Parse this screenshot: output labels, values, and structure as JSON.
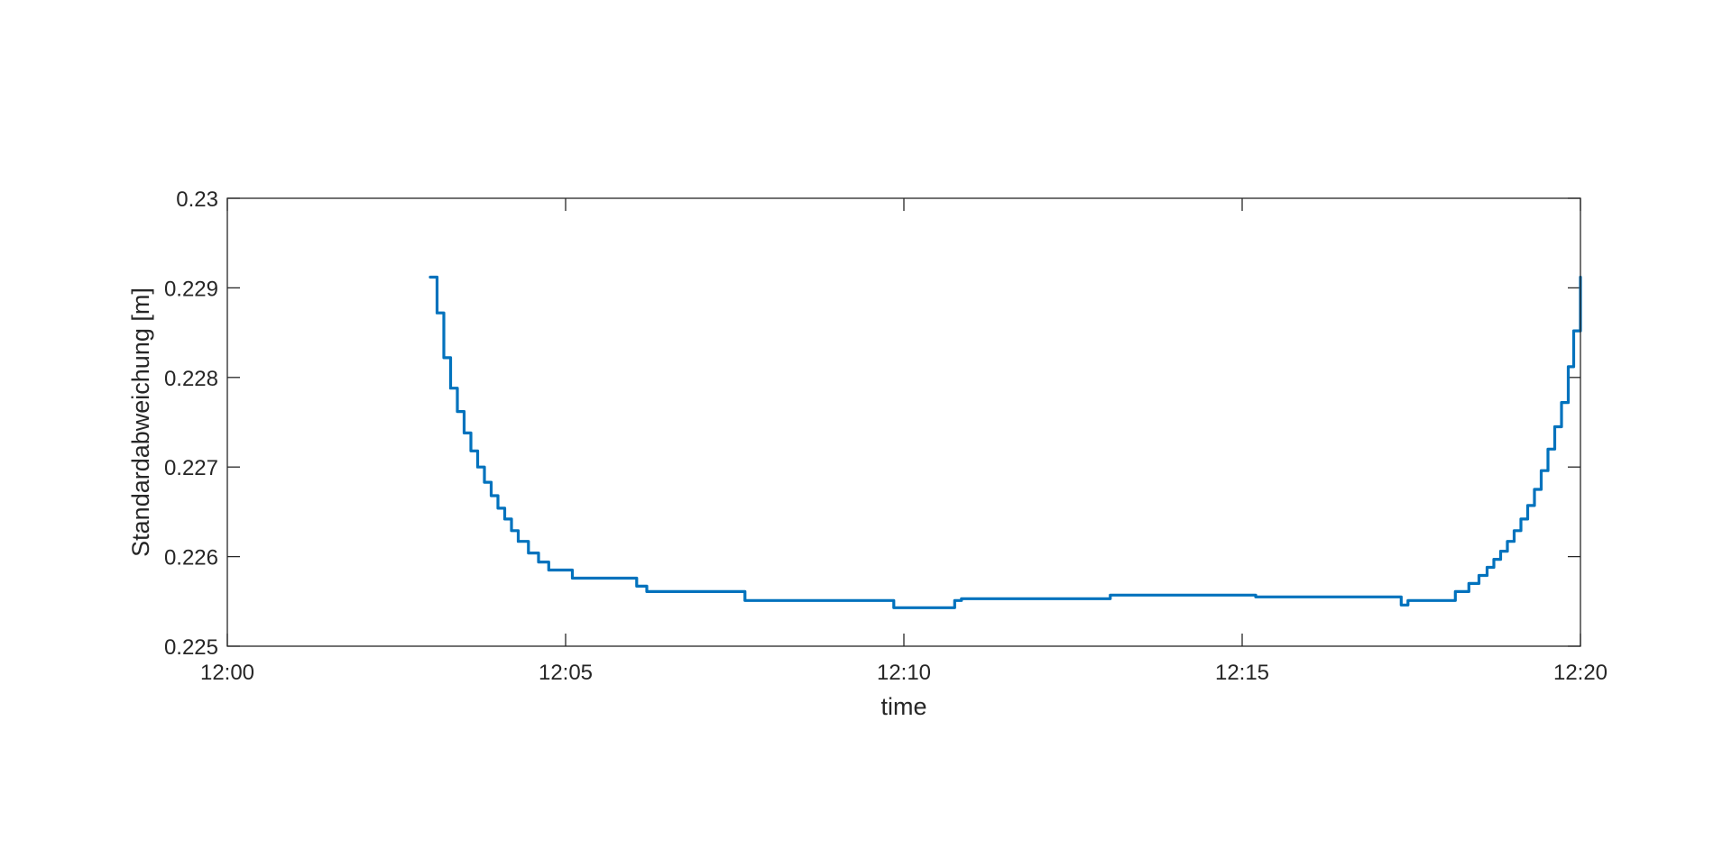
{
  "chart_data": {
    "type": "line",
    "title": "",
    "xlabel": "time",
    "ylabel": "Standardabweichung [m]",
    "x_unit": "minutes after 12:00",
    "xlim": [
      0,
      20
    ],
    "ylim": [
      0.225,
      0.23
    ],
    "x_ticks": [
      0,
      5,
      10,
      15,
      20
    ],
    "x_tick_labels": [
      "12:00",
      "12:05",
      "12:10",
      "12:15",
      "12:20"
    ],
    "y_ticks": [
      0.225,
      0.226,
      0.227,
      0.228,
      0.229,
      0.23
    ],
    "y_tick_labels": [
      "0.225",
      "0.226",
      "0.227",
      "0.228",
      "0.229",
      "0.23"
    ],
    "grid": false,
    "box": true,
    "series": [
      {
        "name": "",
        "color": "#0072BD",
        "step": true,
        "x": [
          3.0,
          3.1,
          3.2,
          3.3,
          3.4,
          3.5,
          3.6,
          3.7,
          3.8,
          3.9,
          4.0,
          4.1,
          4.2,
          4.3,
          4.45,
          4.6,
          4.75,
          5.1,
          6.05,
          6.2,
          6.65,
          7.65,
          9.85,
          10.75,
          10.85,
          13.05,
          15.2,
          17.35,
          17.45,
          17.9,
          18.15,
          18.35,
          18.5,
          18.62,
          18.72,
          18.82,
          18.92,
          19.02,
          19.12,
          19.22,
          19.32,
          19.42,
          19.52,
          19.62,
          19.72,
          19.82,
          19.9,
          20.0
        ],
        "y": [
          0.22912,
          0.22872,
          0.22822,
          0.22788,
          0.22762,
          0.22738,
          0.22718,
          0.227,
          0.22683,
          0.22668,
          0.22654,
          0.22642,
          0.22629,
          0.22617,
          0.22604,
          0.22594,
          0.22585,
          0.22576,
          0.22567,
          0.22561,
          0.22561,
          0.22551,
          0.22543,
          0.22551,
          0.22553,
          0.22557,
          0.22555,
          0.22546,
          0.22551,
          0.22551,
          0.22561,
          0.2257,
          0.22579,
          0.22588,
          0.22597,
          0.22606,
          0.22617,
          0.22629,
          0.22642,
          0.22657,
          0.22675,
          0.22696,
          0.2272,
          0.22745,
          0.22772,
          0.22812,
          0.22852,
          0.22912
        ]
      }
    ]
  }
}
